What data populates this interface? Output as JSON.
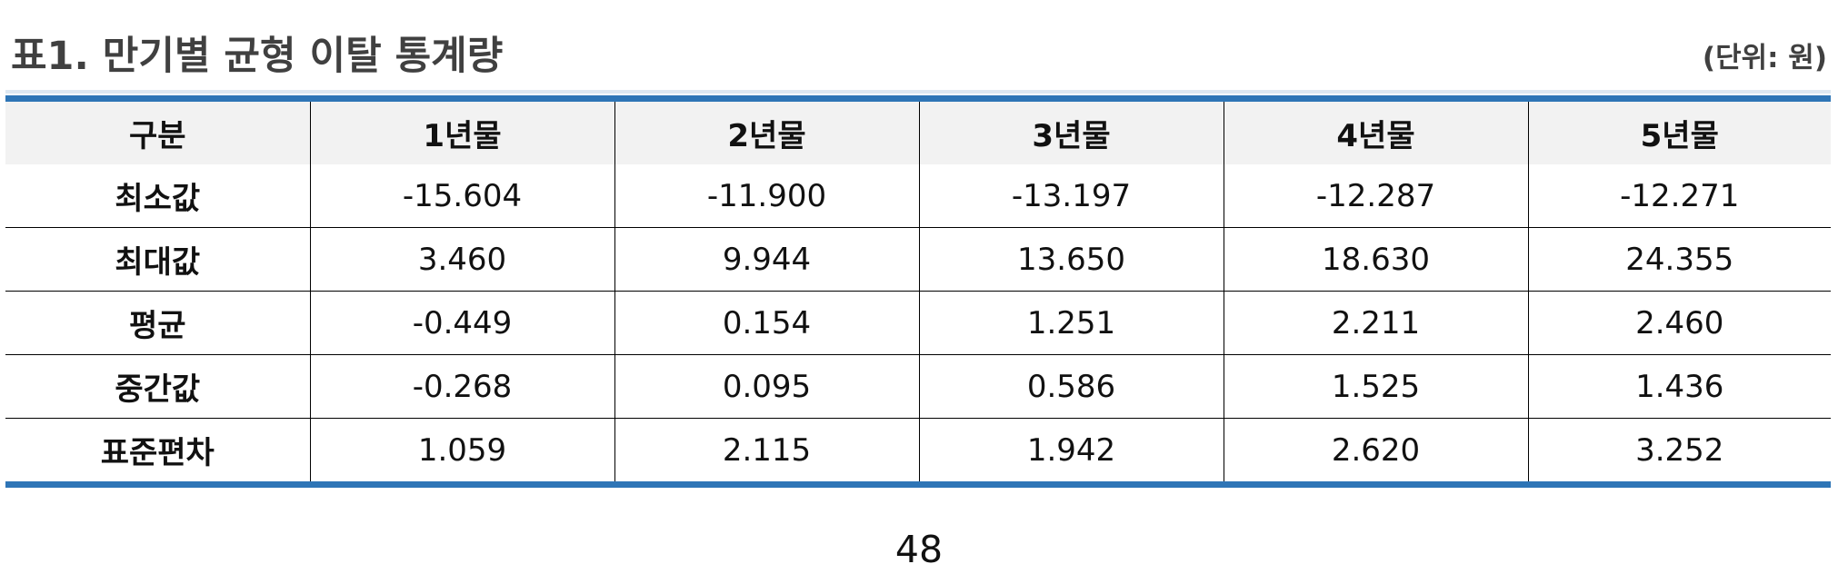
{
  "title": "표1. 만기별 균형 이탈 통계량",
  "unit": "(단위: 원)",
  "table": {
    "headers": [
      "구분",
      "1년물",
      "2년물",
      "3년물",
      "4년물",
      "5년물"
    ],
    "rows": [
      {
        "label": "최소값",
        "values": [
          "-15.604",
          "-11.900",
          "-13.197",
          "-12.287",
          "-12.271"
        ]
      },
      {
        "label": "최대값",
        "values": [
          "3.460",
          "9.944",
          "13.650",
          "18.630",
          "24.355"
        ]
      },
      {
        "label": "평균",
        "values": [
          "-0.449",
          "0.154",
          "1.251",
          "2.211",
          "2.460"
        ]
      },
      {
        "label": "중간값",
        "values": [
          "-0.268",
          "0.095",
          "0.586",
          "1.525",
          "1.436"
        ]
      },
      {
        "label": "표준편차",
        "values": [
          "1.059",
          "2.115",
          "1.942",
          "2.620",
          "3.252"
        ]
      }
    ]
  },
  "page_number": "48",
  "colors": {
    "accent": "#2e75b6",
    "header_bg": "#f2f2f2",
    "title_text": "#404040"
  }
}
